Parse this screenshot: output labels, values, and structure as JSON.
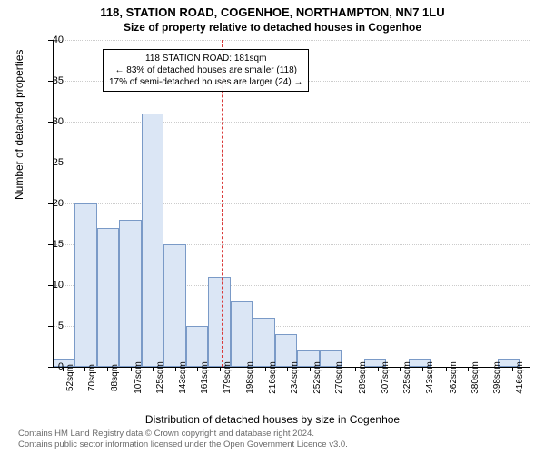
{
  "title": "118, STATION ROAD, COGENHOE, NORTHAMPTON, NN7 1LU",
  "subtitle": "Size of property relative to detached houses in Cogenhoe",
  "ylabel": "Number of detached properties",
  "xlabel": "Distribution of detached houses by size in Cogenhoe",
  "annotation": {
    "line1": "118 STATION ROAD: 181sqm",
    "line2": "← 83% of detached houses are smaller (118)",
    "line3": "17% of semi-detached houses are larger (24) →"
  },
  "footer": {
    "line1": "Contains HM Land Registry data © Crown copyright and database right 2024.",
    "line2": "Contains public sector information licensed under the Open Government Licence v3.0."
  },
  "chart": {
    "type": "histogram",
    "background_color": "#ffffff",
    "bar_fill": "#dbe6f5",
    "bar_border": "#7a9ac7",
    "grid_color": "#cccccc",
    "ref_line_color": "#d93a3a",
    "ref_line_x": 181,
    "xlim": [
      44,
      430
    ],
    "ylim": [
      0,
      40
    ],
    "y_ticks": [
      0,
      5,
      10,
      15,
      20,
      25,
      30,
      35,
      40
    ],
    "x_ticks": [
      52,
      70,
      88,
      107,
      125,
      143,
      161,
      179,
      198,
      216,
      234,
      252,
      270,
      289,
      307,
      325,
      343,
      362,
      380,
      398,
      416
    ],
    "x_tick_suffix": "sqm",
    "bins": [
      {
        "start": 44,
        "end": 62,
        "count": 1
      },
      {
        "start": 62,
        "end": 80,
        "count": 20
      },
      {
        "start": 80,
        "end": 98,
        "count": 17
      },
      {
        "start": 98,
        "end": 116,
        "count": 18
      },
      {
        "start": 116,
        "end": 134,
        "count": 31
      },
      {
        "start": 134,
        "end": 152,
        "count": 15
      },
      {
        "start": 152,
        "end": 170,
        "count": 5
      },
      {
        "start": 170,
        "end": 188,
        "count": 11
      },
      {
        "start": 188,
        "end": 206,
        "count": 8
      },
      {
        "start": 206,
        "end": 224,
        "count": 6
      },
      {
        "start": 224,
        "end": 242,
        "count": 4
      },
      {
        "start": 242,
        "end": 260,
        "count": 2
      },
      {
        "start": 260,
        "end": 278,
        "count": 2
      },
      {
        "start": 278,
        "end": 296,
        "count": 0
      },
      {
        "start": 296,
        "end": 314,
        "count": 1
      },
      {
        "start": 314,
        "end": 332,
        "count": 0
      },
      {
        "start": 332,
        "end": 350,
        "count": 1
      },
      {
        "start": 350,
        "end": 368,
        "count": 0
      },
      {
        "start": 368,
        "end": 386,
        "count": 0
      },
      {
        "start": 386,
        "end": 404,
        "count": 0
      },
      {
        "start": 404,
        "end": 422,
        "count": 1
      }
    ],
    "title_fontsize": 13,
    "subtitle_fontsize": 12,
    "label_fontsize": 12,
    "tick_fontsize": 11
  }
}
